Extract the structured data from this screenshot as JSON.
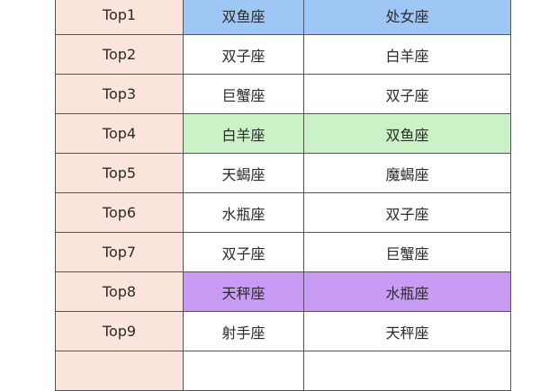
{
  "colors": {
    "rank_column": "#fbe4dc",
    "blue": "#9ec7f6",
    "green": "#cbf1c6",
    "purple": "#c99cf4",
    "default": "#ffffff"
  },
  "rows": [
    {
      "rank": "Top1",
      "a": "双鱼座",
      "b": "处女座",
      "highlight": "blue"
    },
    {
      "rank": "Top2",
      "a": "双子座",
      "b": "白羊座",
      "highlight": "default"
    },
    {
      "rank": "Top3",
      "a": "巨蟹座",
      "b": "双子座",
      "highlight": "default"
    },
    {
      "rank": "Top4",
      "a": "白羊座",
      "b": "双鱼座",
      "highlight": "green"
    },
    {
      "rank": "Top5",
      "a": "天蝎座",
      "b": "魔蝎座",
      "highlight": "default"
    },
    {
      "rank": "Top6",
      "a": "水瓶座",
      "b": "双子座",
      "highlight": "default"
    },
    {
      "rank": "Top7",
      "a": "双子座",
      "b": "巨蟹座",
      "highlight": "default"
    },
    {
      "rank": "Top8",
      "a": "天秤座",
      "b": "水瓶座",
      "highlight": "purple"
    },
    {
      "rank": "Top9",
      "a": "射手座",
      "b": "天秤座",
      "highlight": "default"
    },
    {
      "rank": "",
      "a": "",
      "b": "",
      "highlight": "default"
    }
  ]
}
